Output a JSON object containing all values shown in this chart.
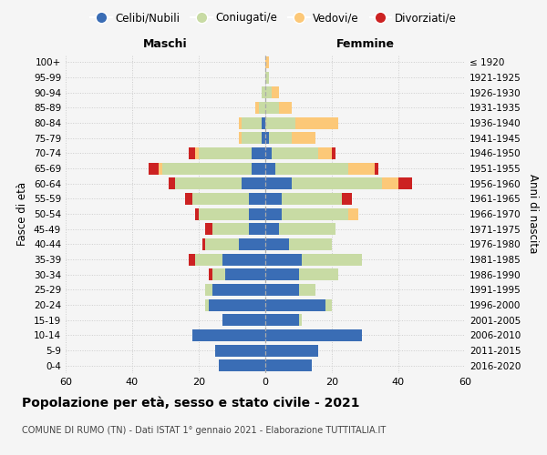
{
  "age_groups": [
    "0-4",
    "5-9",
    "10-14",
    "15-19",
    "20-24",
    "25-29",
    "30-34",
    "35-39",
    "40-44",
    "45-49",
    "50-54",
    "55-59",
    "60-64",
    "65-69",
    "70-74",
    "75-79",
    "80-84",
    "85-89",
    "90-94",
    "95-99",
    "100+"
  ],
  "birth_years": [
    "2016-2020",
    "2011-2015",
    "2006-2010",
    "2001-2005",
    "1996-2000",
    "1991-1995",
    "1986-1990",
    "1981-1985",
    "1976-1980",
    "1971-1975",
    "1966-1970",
    "1961-1965",
    "1956-1960",
    "1951-1955",
    "1946-1950",
    "1941-1945",
    "1936-1940",
    "1931-1935",
    "1926-1930",
    "1921-1925",
    "≤ 1920"
  ],
  "maschi": {
    "celibe": [
      14,
      15,
      22,
      13,
      17,
      16,
      12,
      13,
      8,
      5,
      5,
      5,
      7,
      4,
      4,
      1,
      1,
      0,
      0,
      0,
      0
    ],
    "coniugato": [
      0,
      0,
      0,
      0,
      1,
      2,
      4,
      8,
      10,
      11,
      15,
      17,
      20,
      27,
      16,
      6,
      6,
      2,
      1,
      0,
      0
    ],
    "vedovo": [
      0,
      0,
      0,
      0,
      0,
      0,
      0,
      0,
      0,
      0,
      0,
      0,
      0,
      1,
      1,
      1,
      1,
      1,
      0,
      0,
      0
    ],
    "divorziato": [
      0,
      0,
      0,
      0,
      0,
      0,
      1,
      2,
      1,
      2,
      1,
      2,
      2,
      3,
      2,
      0,
      0,
      0,
      0,
      0,
      0
    ]
  },
  "femmine": {
    "nubile": [
      14,
      16,
      29,
      10,
      18,
      10,
      10,
      11,
      7,
      4,
      5,
      5,
      8,
      3,
      2,
      1,
      0,
      0,
      0,
      0,
      0
    ],
    "coniugata": [
      0,
      0,
      0,
      1,
      2,
      5,
      12,
      18,
      13,
      17,
      20,
      18,
      27,
      22,
      14,
      7,
      9,
      4,
      2,
      1,
      0
    ],
    "vedova": [
      0,
      0,
      0,
      0,
      0,
      0,
      0,
      0,
      0,
      0,
      3,
      0,
      5,
      8,
      4,
      7,
      13,
      4,
      2,
      0,
      1
    ],
    "divorziata": [
      0,
      0,
      0,
      0,
      0,
      0,
      0,
      0,
      0,
      0,
      0,
      3,
      4,
      1,
      1,
      0,
      0,
      0,
      0,
      0,
      0
    ]
  },
  "colors": {
    "celibe": "#3a6db5",
    "coniugato": "#c8dba4",
    "vedovo": "#fcc878",
    "divorziato": "#cc2222"
  },
  "xlim": 60,
  "title": "Popolazione per età, sesso e stato civile - 2021",
  "subtitle": "COMUNE DI RUMO (TN) - Dati ISTAT 1° gennaio 2021 - Elaborazione TUTTITALIA.IT",
  "ylabel_left": "Fasce di età",
  "ylabel_right": "Anni di nascita",
  "xlabel_left": "Maschi",
  "xlabel_right": "Femmine",
  "background_color": "#f5f5f5"
}
